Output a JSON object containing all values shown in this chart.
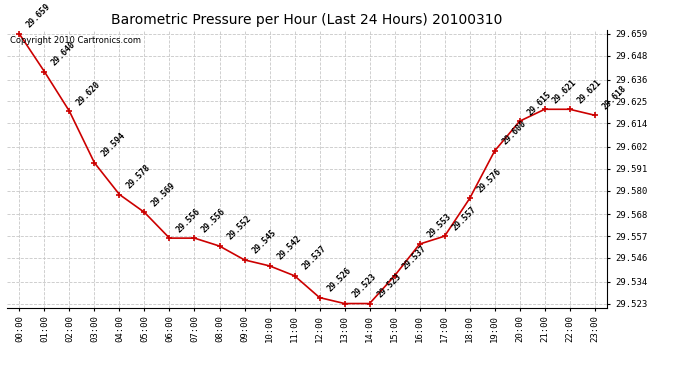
{
  "title": "Barometric Pressure per Hour (Last 24 Hours) 20100310",
  "copyright": "Copyright 2010 Cartronics.com",
  "hours": [
    "00:00",
    "01:00",
    "02:00",
    "03:00",
    "04:00",
    "05:00",
    "06:00",
    "07:00",
    "08:00",
    "09:00",
    "10:00",
    "11:00",
    "12:00",
    "13:00",
    "14:00",
    "15:00",
    "16:00",
    "17:00",
    "18:00",
    "19:00",
    "20:00",
    "21:00",
    "22:00",
    "23:00"
  ],
  "values": [
    29.659,
    29.64,
    29.62,
    29.594,
    29.578,
    29.569,
    29.556,
    29.556,
    29.552,
    29.545,
    29.542,
    29.537,
    29.526,
    29.523,
    29.523,
    29.537,
    29.553,
    29.557,
    29.576,
    29.6,
    29.615,
    29.621,
    29.621,
    29.618
  ],
  "ylim_min": 29.523,
  "ylim_max": 29.659,
  "line_color": "#cc0000",
  "marker_color": "#cc0000",
  "bg_color": "#ffffff",
  "grid_color": "#c8c8c8",
  "title_fontsize": 10,
  "annot_fontsize": 6,
  "tick_fontsize": 6.5,
  "copyright_fontsize": 6,
  "yticks": [
    29.523,
    29.534,
    29.546,
    29.557,
    29.568,
    29.58,
    29.591,
    29.602,
    29.614,
    29.625,
    29.636,
    29.648,
    29.659
  ]
}
